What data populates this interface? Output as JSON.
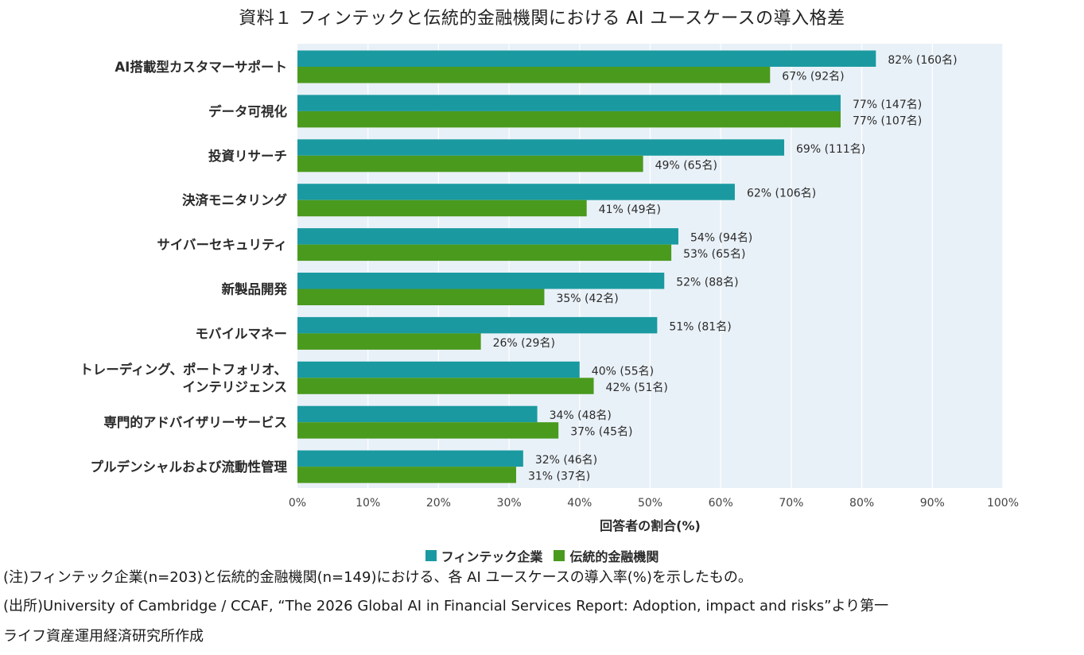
{
  "title": "資料１ フィンテックと伝統的金融機関における AI ユースケースの導入格差",
  "colors": {
    "fintech": "#1a9aa0",
    "traditional": "#4a9a1e",
    "plot_background": "#e9f1f8",
    "grid": "#ffffff"
  },
  "chart_data": {
    "type": "bar",
    "orientation": "horizontal",
    "categories": [
      [
        "AI搭載型カスタマーサポート"
      ],
      [
        "データ可視化"
      ],
      [
        "投資リサーチ"
      ],
      [
        "決済モニタリング"
      ],
      [
        "サイバーセキュリティ"
      ],
      [
        "新製品開発"
      ],
      [
        "モバイルマネー"
      ],
      [
        "トレーディング、ポートフォリオ、",
        "インテリジェンス"
      ],
      [
        "専門的アドバイザリーサービス"
      ],
      [
        "プルデンシャルおよび流動性管理"
      ]
    ],
    "series": [
      {
        "name": "フィンテック企業",
        "values": [
          82,
          77,
          69,
          62,
          54,
          52,
          51,
          40,
          34,
          32
        ],
        "labels": [
          "82% (160名)",
          "77% (147名)",
          "69% (111名)",
          "62% (106名)",
          "54% (94名)",
          "52% (88名)",
          "51% (81名)",
          "40% (55名)",
          "34% (48名)",
          "32% (46名)"
        ]
      },
      {
        "name": "伝統的金融機関",
        "values": [
          67,
          77,
          49,
          41,
          53,
          35,
          26,
          42,
          37,
          31
        ],
        "labels": [
          "67% (92名)",
          "77% (107名)",
          "49% (65名)",
          "41% (49名)",
          "53% (65名)",
          "35% (42名)",
          "26% (29名)",
          "42% (51名)",
          "37% (45名)",
          "31% (37名)"
        ]
      }
    ],
    "xlim": [
      0,
      100
    ],
    "xticks": [
      "0%",
      "10%",
      "20%",
      "30%",
      "40%",
      "50%",
      "60%",
      "70%",
      "80%",
      "90%",
      "100%"
    ],
    "xlabel": "回答者の割合(%)",
    "grid": true,
    "legend": "bottom"
  },
  "notes": {
    "note1": "(注)フィンテック企業(n=203)と伝統的金融機関(n=149)における、各 AI ユースケースの導入率(%)を示したもの。",
    "note2": "(出所)University of Cambridge / CCAF, “The 2026 Global AI in Financial Services Report: Adoption, impact and risks”より第一",
    "note3": "ライフ資産運用経済研究所作成"
  }
}
